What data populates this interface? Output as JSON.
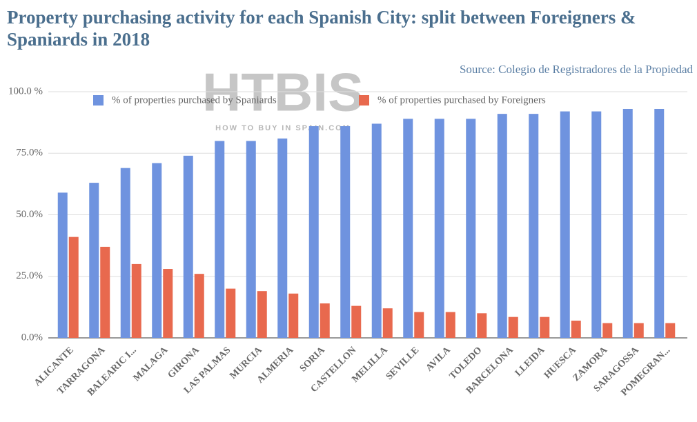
{
  "chart_data": {
    "type": "bar",
    "title": "Property purchasing activity for each Spanish City: split between Foreigners & Spaniards in 2018",
    "source": "Source: Colegio de Registradores de la Propiedad",
    "watermark": {
      "title": "HTBIS",
      "subtitle": "HOW TO BUY IN SPAIN.COM"
    },
    "categories": [
      "ALICANTE",
      "TARRAGONA",
      "BALEARIC I...",
      "MALAGA",
      "GIRONA",
      "LAS PALMAS",
      "MURCIA",
      "ALMERIA",
      "SORIA",
      "CASTELLON",
      "MELILLA",
      "SEVILLE",
      "AVILA",
      "TOLEDO",
      "BARCELONA",
      "LLEIDA",
      "HUESCA",
      "ZAMORA",
      "SARAGOSSA",
      "POMEGRAN..."
    ],
    "series": [
      {
        "name": "% of properties purchased by Spaniards",
        "color": "#6f93df",
        "values": [
          59,
          63,
          69,
          71,
          74,
          80,
          80,
          81,
          86,
          86,
          87,
          89,
          89,
          89,
          91,
          91,
          92,
          92,
          93,
          93
        ]
      },
      {
        "name": "% of properties purchased by Foreigners",
        "color": "#e8694e",
        "values": [
          41,
          37,
          30,
          28,
          26,
          20,
          19,
          18,
          14,
          13,
          12,
          10.5,
          10.5,
          10,
          8.5,
          8.5,
          7,
          6,
          6,
          6
        ]
      }
    ],
    "ylim": [
      0,
      100
    ],
    "yticks": [
      {
        "value": 0,
        "label": "0.0%"
      },
      {
        "value": 25,
        "label": "25.0%"
      },
      {
        "value": 50,
        "label": "50.0%"
      },
      {
        "value": 75,
        "label": "75.0%"
      },
      {
        "value": 100,
        "label": "100.0 %"
      }
    ],
    "grid": true
  }
}
